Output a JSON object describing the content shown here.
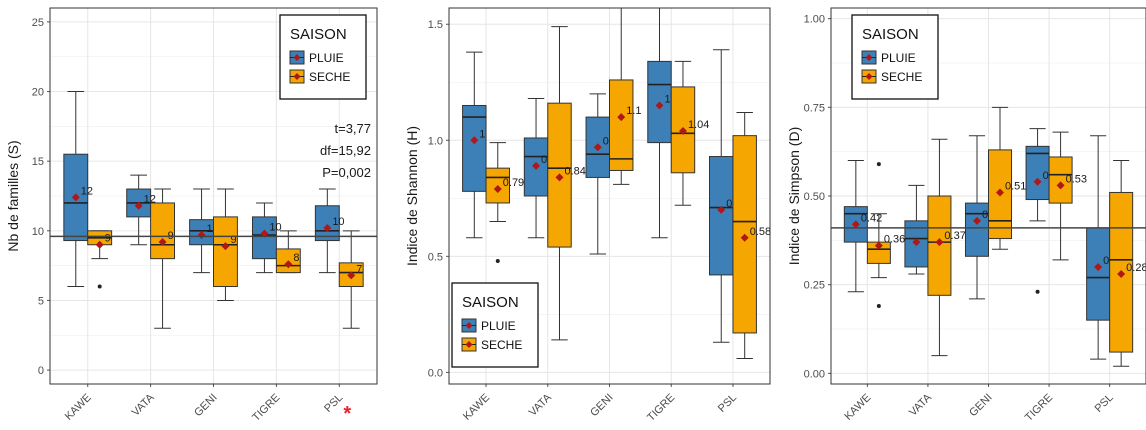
{
  "colors": {
    "pluie": "#3d80b8",
    "seche": "#f6a600",
    "mean_point": "#b01818",
    "grid": "#e6e6e6",
    "hline": "#444444",
    "significance": "#e8212b"
  },
  "legend": {
    "title": "SAISON",
    "items": [
      "PLUIE",
      "SECHE"
    ]
  },
  "chart_data": [
    {
      "type": "box",
      "ylabel": "Nb de familles (S)",
      "categories": [
        "KAWE",
        "VATA",
        "GENI",
        "TIGRE",
        "PSL"
      ],
      "ylim": [
        -1,
        26
      ],
      "yticks": [
        0,
        5,
        10,
        15,
        20,
        25
      ],
      "tick_labels": [
        "0",
        "5",
        "10",
        "15",
        "20",
        "25"
      ],
      "legend_position": "top-right",
      "hline": 9.6,
      "stats_text": [
        "t=3,77",
        "df=15,92",
        "P=0,002"
      ],
      "significant": [
        "PSL"
      ],
      "significance_mark": "*",
      "series": [
        {
          "name": "PLUIE",
          "boxes": [
            {
              "min": 6,
              "q1": 9.3,
              "median": 12,
              "q3": 15.5,
              "max": 20,
              "mean": 12.4,
              "mean_label": "12",
              "outliers": []
            },
            {
              "min": 9,
              "q1": 11,
              "median": 12,
              "q3": 13,
              "max": 14,
              "mean": 11.8,
              "mean_label": "12",
              "outliers": []
            },
            {
              "min": 7,
              "q1": 9,
              "median": 10,
              "q3": 10.8,
              "max": 13,
              "mean": 9.7,
              "mean_label": "10",
              "outliers": []
            },
            {
              "min": 7,
              "q1": 8,
              "median": 9.7,
              "q3": 11,
              "max": 12,
              "mean": 9.8,
              "mean_label": "10",
              "outliers": []
            },
            {
              "min": 7,
              "q1": 9.3,
              "median": 10,
              "q3": 11.8,
              "max": 13,
              "mean": 10.2,
              "mean_label": "10",
              "outliers": []
            }
          ]
        },
        {
          "name": "SECHE",
          "boxes": [
            {
              "min": 8,
              "q1": 9,
              "median": 9.5,
              "q3": 10,
              "max": 10,
              "mean": 9,
              "mean_label": "9",
              "outliers": [
                6
              ]
            },
            {
              "min": 3,
              "q1": 8,
              "median": 9,
              "q3": 12,
              "max": 13,
              "mean": 9.2,
              "mean_label": "9",
              "outliers": []
            },
            {
              "min": 5,
              "q1": 6,
              "median": 9,
              "q3": 11,
              "max": 13,
              "mean": 8.9,
              "mean_label": "9",
              "outliers": []
            },
            {
              "min": 7,
              "q1": 7,
              "median": 7.5,
              "q3": 8.7,
              "max": 10,
              "mean": 7.6,
              "mean_label": "8",
              "outliers": []
            },
            {
              "min": 3,
              "q1": 6,
              "median": 7,
              "q3": 7.7,
              "max": 10,
              "mean": 6.8,
              "mean_label": "7",
              "outliers": []
            }
          ]
        }
      ]
    },
    {
      "type": "box",
      "ylabel": "Indice de Shannon (H)",
      "categories": [
        "KAWE",
        "VATA",
        "GENI",
        "TIGRE",
        "PSL"
      ],
      "ylim": [
        -0.05,
        1.57
      ],
      "yticks": [
        0,
        0.5,
        1,
        1.5
      ],
      "tick_labels": [
        "0.0",
        "0.5",
        "1.0",
        "1.5"
      ],
      "legend_position": "bottom-left",
      "series": [
        {
          "name": "PLUIE",
          "boxes": [
            {
              "min": 0.58,
              "q1": 0.78,
              "median": 1.1,
              "q3": 1.15,
              "max": 1.38,
              "mean": 1.0,
              "mean_label": "1",
              "outliers": []
            },
            {
              "min": 0.58,
              "q1": 0.76,
              "median": 0.93,
              "q3": 1.01,
              "max": 1.18,
              "mean": 0.89,
              "mean_label": "0.89",
              "outliers": []
            },
            {
              "min": 0.51,
              "q1": 0.84,
              "median": 0.94,
              "q3": 1.1,
              "max": 1.2,
              "mean": 0.97,
              "mean_label": "0.97",
              "outliers": []
            },
            {
              "min": 0.58,
              "q1": 0.99,
              "median": 1.24,
              "q3": 1.34,
              "max": 1.57,
              "mean": 1.15,
              "mean_label": "1.15",
              "outliers": []
            },
            {
              "min": 0.13,
              "q1": 0.42,
              "median": 0.71,
              "q3": 0.93,
              "max": 1.39,
              "mean": 0.7,
              "mean_label": "0.7",
              "outliers": []
            }
          ]
        },
        {
          "name": "SECHE",
          "boxes": [
            {
              "min": 0.65,
              "q1": 0.73,
              "median": 0.84,
              "q3": 0.88,
              "max": 0.99,
              "mean": 0.79,
              "mean_label": "0.79",
              "outliers": [
                0.48
              ]
            },
            {
              "min": 0.14,
              "q1": 0.54,
              "median": 0.88,
              "q3": 1.16,
              "max": 1.49,
              "mean": 0.84,
              "mean_label": "0.84",
              "outliers": []
            },
            {
              "min": 0.81,
              "q1": 0.87,
              "median": 0.92,
              "q3": 1.26,
              "max": 1.57,
              "mean": 1.1,
              "mean_label": "1.1",
              "outliers": []
            },
            {
              "min": 0.72,
              "q1": 0.86,
              "median": 1.03,
              "q3": 1.23,
              "max": 1.34,
              "mean": 1.04,
              "mean_label": "1.04",
              "outliers": []
            },
            {
              "min": 0.06,
              "q1": 0.17,
              "median": 0.65,
              "q3": 1.02,
              "max": 1.12,
              "mean": 0.58,
              "mean_label": "0.58",
              "outliers": []
            }
          ]
        }
      ]
    },
    {
      "type": "box",
      "ylabel": "Indice de Simpson (D)",
      "categories": [
        "KAWE",
        "VATA",
        "GENI",
        "TIGRE",
        "PSL"
      ],
      "ylim": [
        -0.03,
        1.03
      ],
      "yticks": [
        0,
        0.25,
        0.5,
        0.75,
        1
      ],
      "tick_labels": [
        "0.00",
        "0.25",
        "0.50",
        "0.75",
        "1.00"
      ],
      "legend_position": "top-left",
      "hline": 0.41,
      "series": [
        {
          "name": "PLUIE",
          "boxes": [
            {
              "min": 0.23,
              "q1": 0.37,
              "median": 0.45,
              "q3": 0.47,
              "max": 0.6,
              "mean": 0.42,
              "mean_label": "0.42",
              "outliers": []
            },
            {
              "min": 0.28,
              "q1": 0.3,
              "median": 0.38,
              "q3": 0.43,
              "max": 0.53,
              "mean": 0.37,
              "mean_label": "",
              "outliers": []
            },
            {
              "min": 0.21,
              "q1": 0.33,
              "median": 0.45,
              "q3": 0.48,
              "max": 0.67,
              "mean": 0.43,
              "mean_label": "0.43",
              "outliers": []
            },
            {
              "min": 0.43,
              "q1": 0.49,
              "median": 0.62,
              "q3": 0.64,
              "max": 0.69,
              "mean": 0.54,
              "mean_label": "0.54",
              "outliers": [
                0.23
              ]
            },
            {
              "min": 0.04,
              "q1": 0.15,
              "median": 0.27,
              "q3": 0.41,
              "max": 0.67,
              "mean": 0.3,
              "mean_label": "0.3",
              "outliers": []
            }
          ]
        },
        {
          "name": "SECHE",
          "boxes": [
            {
              "min": 0.27,
              "q1": 0.31,
              "median": 0.35,
              "q3": 0.37,
              "max": 0.45,
              "mean": 0.36,
              "mean_label": "0.36",
              "outliers": [
                0.59,
                0.19
              ]
            },
            {
              "min": 0.05,
              "q1": 0.22,
              "median": 0.37,
              "q3": 0.5,
              "max": 0.66,
              "mean": 0.37,
              "mean_label": "0.37",
              "outliers": []
            },
            {
              "min": 0.35,
              "q1": 0.38,
              "median": 0.43,
              "q3": 0.63,
              "max": 0.75,
              "mean": 0.51,
              "mean_label": "0.51",
              "outliers": []
            },
            {
              "min": 0.32,
              "q1": 0.48,
              "median": 0.56,
              "q3": 0.61,
              "max": 0.68,
              "mean": 0.53,
              "mean_label": "0.53",
              "outliers": []
            },
            {
              "min": 0.02,
              "q1": 0.06,
              "median": 0.32,
              "q3": 0.51,
              "max": 0.6,
              "mean": 0.28,
              "mean_label": "0.28",
              "outliers": []
            }
          ]
        }
      ]
    }
  ]
}
